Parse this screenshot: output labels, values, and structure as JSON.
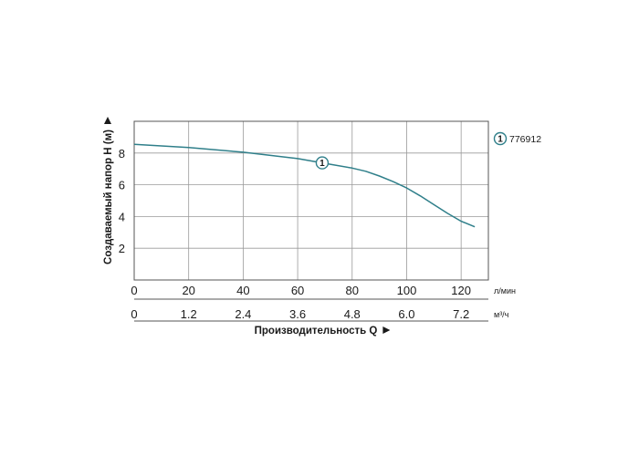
{
  "chart_data": {
    "type": "line",
    "ylabel": "Создаваемый напор Н (м)",
    "xlabel": "Производительность Q",
    "x_unit_primary": "л/мин",
    "x_unit_secondary": "м³/ч",
    "ylim": [
      0,
      10
    ],
    "y_ticks": [
      2,
      4,
      6,
      8
    ],
    "xlim": [
      0,
      130
    ],
    "x_ticks": [
      0,
      20,
      40,
      60,
      80,
      100,
      120
    ],
    "x_ticks_secondary": [
      "0",
      "1.2",
      "2.4",
      "3.6",
      "4.8",
      "6.0",
      "7.2"
    ],
    "grid": true,
    "legend_position": "top-right",
    "line_color": "#2f7f8a",
    "series": [
      {
        "marker": "1",
        "legend": "776912",
        "marker_x": 69,
        "x": [
          0,
          20,
          40,
          60,
          70,
          80,
          85,
          90,
          95,
          100,
          105,
          110,
          115,
          120,
          125
        ],
        "y": [
          8.55,
          8.35,
          8.05,
          7.65,
          7.35,
          7.05,
          6.85,
          6.55,
          6.2,
          5.8,
          5.3,
          4.75,
          4.2,
          3.7,
          3.35
        ]
      }
    ]
  }
}
